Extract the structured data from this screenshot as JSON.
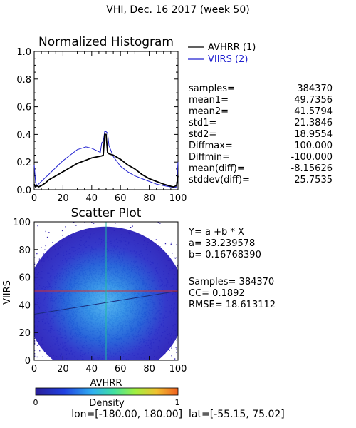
{
  "title": "VHI,  Dec. 16 2017 (week 50)",
  "colors": {
    "avhrr": "#000000",
    "viirs": "#2020d0",
    "cross_h": "#d03030",
    "cross_v": "#20b8a0"
  },
  "chart_data": [
    {
      "type": "line",
      "title": "Normalized Histogram",
      "xlim": [
        0,
        100
      ],
      "ylim": [
        0,
        1.0
      ],
      "xticks": [
        "0",
        "20",
        "40",
        "60",
        "80",
        "100"
      ],
      "yticks": [
        "0.0",
        "0.2",
        "0.4",
        "0.6",
        "0.8",
        "1.0"
      ],
      "legend_position": "right",
      "series": [
        {
          "name": "AVHRR (1)",
          "x": [
            0,
            1,
            2,
            3,
            5,
            8,
            10,
            15,
            20,
            25,
            30,
            35,
            40,
            45,
            47,
            48,
            49,
            50,
            51,
            52,
            55,
            60,
            65,
            70,
            75,
            80,
            85,
            90,
            95,
            97,
            99,
            100
          ],
          "y": [
            0.04,
            0.02,
            0.03,
            0.02,
            0.03,
            0.05,
            0.07,
            0.1,
            0.13,
            0.16,
            0.19,
            0.21,
            0.23,
            0.24,
            0.245,
            0.25,
            0.4,
            0.4,
            0.27,
            0.26,
            0.25,
            0.22,
            0.18,
            0.15,
            0.11,
            0.08,
            0.06,
            0.04,
            0.025,
            0.02,
            0.03,
            0.1
          ]
        },
        {
          "name": "VIIRS (2)",
          "x": [
            0,
            1,
            2,
            3,
            5,
            8,
            10,
            15,
            20,
            25,
            30,
            33,
            36,
            40,
            44,
            46,
            47,
            48,
            49,
            50,
            51,
            52,
            55,
            60,
            65,
            70,
            75,
            80,
            85,
            90,
            95,
            97,
            99,
            100
          ],
          "y": [
            0.18,
            0.05,
            0.03,
            0.04,
            0.06,
            0.09,
            0.11,
            0.16,
            0.21,
            0.25,
            0.29,
            0.3,
            0.31,
            0.3,
            0.28,
            0.27,
            0.34,
            0.35,
            0.42,
            0.42,
            0.41,
            0.32,
            0.24,
            0.17,
            0.13,
            0.1,
            0.08,
            0.06,
            0.04,
            0.03,
            0.02,
            0.015,
            0.02,
            0.2
          ]
        }
      ]
    },
    {
      "type": "heatmap",
      "title": "Scatter Plot",
      "xlabel": "AVHRR",
      "ylabel": "VIIRS",
      "xlim": [
        0,
        100
      ],
      "ylim": [
        0,
        100
      ],
      "xticks": [
        "0",
        "20",
        "40",
        "60",
        "80",
        "100"
      ],
      "yticks": [
        "0",
        "20",
        "40",
        "60",
        "80",
        "100"
      ],
      "center": [
        49.7356,
        41.5794
      ],
      "spread": [
        21.3846,
        18.9554
      ],
      "crosshair": [
        50,
        50
      ],
      "fit_line": {
        "a": 33.239578,
        "b": 0.1676839
      },
      "colorbar": {
        "label": "Density",
        "min": "0",
        "max": "1"
      }
    }
  ],
  "stats": [
    {
      "label": "samples=",
      "value": "384370"
    },
    {
      "label": "mean1=",
      "value": "49.7356"
    },
    {
      "label": "mean2=",
      "value": "41.5794"
    },
    {
      "label": "std1=",
      "value": "21.3846"
    },
    {
      "label": "std2=",
      "value": "18.9554"
    },
    {
      "label": "Diffmax=",
      "value": "100.000"
    },
    {
      "label": "Diffmin=",
      "value": "-100.000"
    },
    {
      "label": "mean(diff)=",
      "value": "-8.15626"
    },
    {
      "label": "stddev(diff)=",
      "value": "25.7535"
    }
  ],
  "fit": {
    "equation": "Y= a +b * X",
    "a": "a= 33.239578",
    "b": "b= 0.16768390",
    "samples": "Samples= 384370",
    "cc": "CC=  0.1892",
    "rmse": "RMSE= 18.613112"
  },
  "footer": {
    "lon": "lon=[-180.00, 180.00]",
    "lat": "lat=[-55.15, 75.02]"
  }
}
